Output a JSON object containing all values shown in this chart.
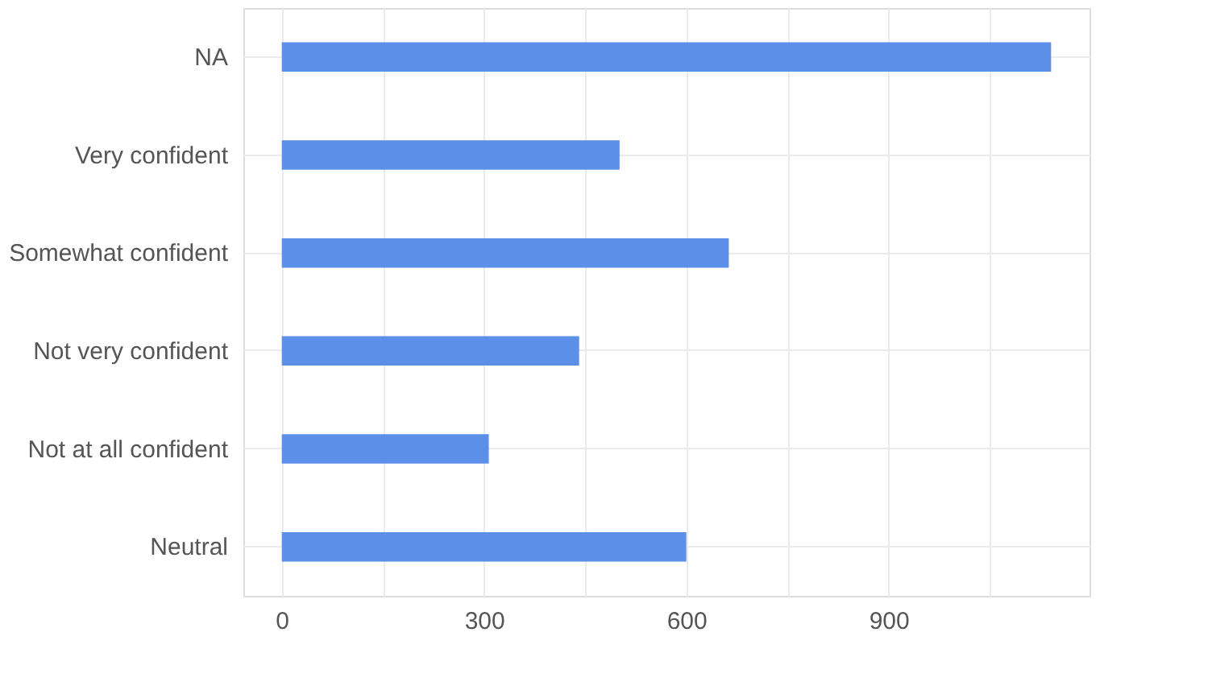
{
  "chart_data": {
    "type": "bar",
    "orientation": "horizontal",
    "categories": [
      "NA",
      "Very confident",
      "Somewhat confident",
      "Not very confident",
      "Not at all confident",
      "Neutral"
    ],
    "values": [
      1141,
      501,
      663,
      441,
      307,
      600
    ],
    "color": "#5b8fe8",
    "xlim": [
      -57,
      1198
    ],
    "xticks": [
      {
        "value": 0,
        "label": "0"
      },
      {
        "value": 150,
        "label": null
      },
      {
        "value": 300,
        "label": "300"
      },
      {
        "value": 450,
        "label": null
      },
      {
        "value": 600,
        "label": "600"
      },
      {
        "value": 750,
        "label": null
      },
      {
        "value": 900,
        "label": "900"
      },
      {
        "value": 1050,
        "label": null
      }
    ],
    "grid": true
  }
}
